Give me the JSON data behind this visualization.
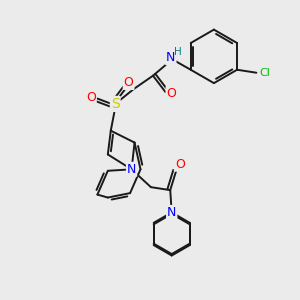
{
  "background_color": "#ebebeb",
  "bond_color": "#1a1a1a",
  "atom_colors": {
    "N": "#0000ff",
    "O": "#ff0000",
    "S": "#cccc00",
    "Cl": "#00bb00",
    "H": "#008080",
    "C": "#1a1a1a"
  },
  "figsize": [
    3.0,
    3.0
  ],
  "dpi": 100
}
